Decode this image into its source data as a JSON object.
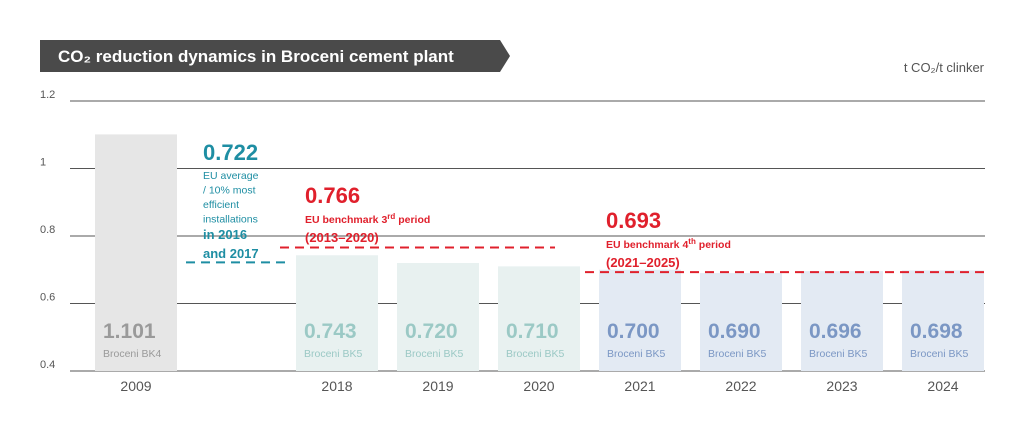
{
  "chart_data": {
    "type": "bar",
    "title": "CO₂ reduction dynamics in Broceni cement plant",
    "unit_label": "t CO₂/t clinker",
    "ylim": [
      0.4,
      1.2
    ],
    "yticks": [
      {
        "value": 0.4,
        "label": "0.4"
      },
      {
        "value": 0.6,
        "label": "0.6"
      },
      {
        "value": 0.8,
        "label": "0.8"
      },
      {
        "value": 1.0,
        "label": "1"
      },
      {
        "value": 1.2,
        "label": "1.2"
      }
    ],
    "grid": true,
    "bars": [
      {
        "year": "2009",
        "value": 1.101,
        "value_label": "1.101",
        "kiln": "Broceni BK4",
        "fill": "#e6e6e6",
        "text_color": "#9a9a9a"
      },
      {
        "year": "2018",
        "value": 0.743,
        "value_label": "0.743",
        "kiln": "Broceni BK5",
        "fill": "#e8f1f0",
        "text_color": "#9bc9c5"
      },
      {
        "year": "2019",
        "value": 0.72,
        "value_label": "0.720",
        "kiln": "Broceni BK5",
        "fill": "#e8f1f0",
        "text_color": "#9bc9c5"
      },
      {
        "year": "2020",
        "value": 0.71,
        "value_label": "0.710",
        "kiln": "Broceni BK5",
        "fill": "#e8f1f0",
        "text_color": "#9bc9c5"
      },
      {
        "year": "2021",
        "value": 0.7,
        "value_label": "0.700",
        "kiln": "Broceni BK5",
        "fill": "#e3eaf3",
        "text_color": "#7b97c4"
      },
      {
        "year": "2022",
        "value": 0.69,
        "value_label": "0.690",
        "kiln": "Broceni BK5",
        "fill": "#e3eaf3",
        "text_color": "#7b97c4"
      },
      {
        "year": "2023",
        "value": 0.696,
        "value_label": "0.696",
        "kiln": "Broceni BK5",
        "fill": "#e3eaf3",
        "text_color": "#7b97c4"
      },
      {
        "year": "2024",
        "value": 0.698,
        "value_label": "0.698",
        "kiln": "Broceni BK5",
        "fill": "#e3eaf3",
        "text_color": "#7b97c4"
      }
    ],
    "benchmarks": [
      {
        "id": "eu-average",
        "value": 0.722,
        "value_label": "0.722",
        "color": "#1e8ea3",
        "text_lines": [
          "EU average",
          "/ 10% most",
          "efficient",
          "installations"
        ],
        "bold_lines": [
          "in 2016",
          "and 2017"
        ]
      },
      {
        "id": "eu-benchmark-3rd",
        "value": 0.766,
        "value_label": "0.766",
        "color": "#e0202c",
        "caption": "EU benchmark 3",
        "caption_sup": "rd",
        "caption_end": " period",
        "period": "(2013–2020)"
      },
      {
        "id": "eu-benchmark-4th",
        "value": 0.693,
        "value_label": "0.693",
        "color": "#e0202c",
        "caption": "EU benchmark 4",
        "caption_sup": "th",
        "caption_end": " period",
        "period": "(2021–2025)"
      }
    ]
  },
  "colors": {
    "title_bg": "#4a4a4a",
    "grid": "#555555",
    "axis_text": "#555555"
  }
}
